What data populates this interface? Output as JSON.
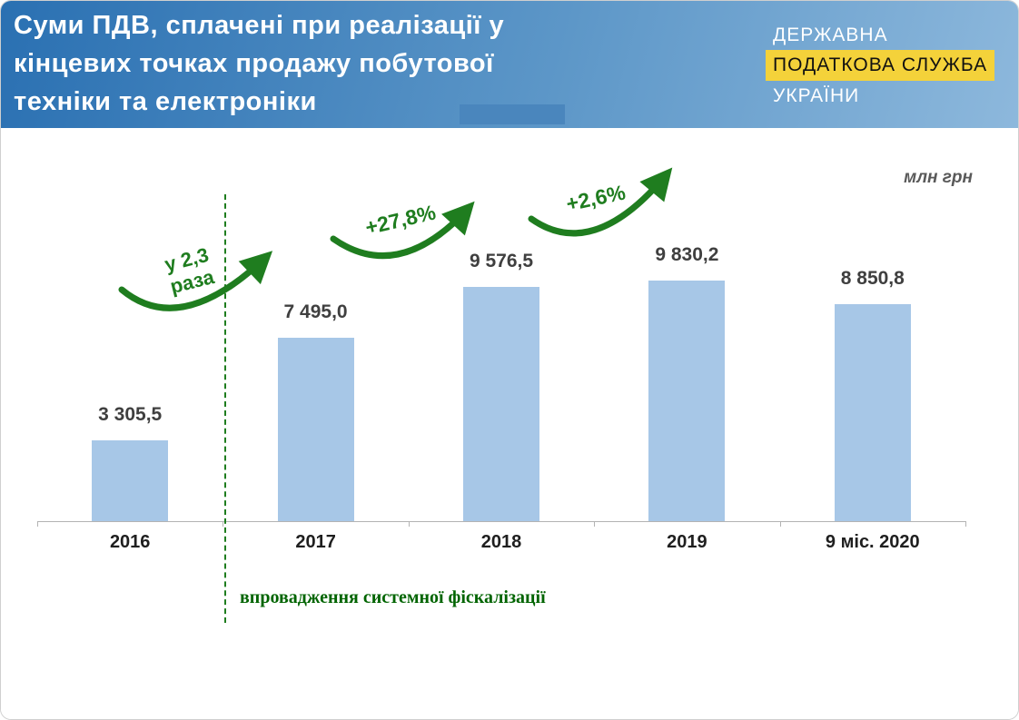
{
  "header": {
    "title_lines": [
      "Суми ПДВ, сплачені при реалізації у",
      "кінцевих точках продажу побутової",
      "техніки та електроніки"
    ],
    "logo": {
      "line1": "ДЕРЖАВНА",
      "line2": "ПОДАТКОВА СЛУЖБА",
      "line3": "УКРАЇНИ",
      "highlight_color": "#f4d23a"
    },
    "background_colors": [
      "#2a70b2",
      "#8db8dc"
    ]
  },
  "chart_data": {
    "type": "bar",
    "title": "Суми ПДВ, сплачені при реалізації у кінцевих точках продажу побутової техніки та електроніки",
    "unit_label": "млн грн",
    "categories": [
      "2016",
      "2017",
      "2018",
      "2019",
      "9 міс. 2020"
    ],
    "values": [
      3305.5,
      7495.0,
      9576.5,
      9830.2,
      8850.8
    ],
    "value_labels": [
      "3 305,5",
      "7 495,0",
      "9 576,5",
      "9 830,2",
      "8 850,8"
    ],
    "ylim": [
      0,
      10500
    ],
    "grid": false,
    "legend": "none",
    "bar_color": "#a7c7e7",
    "accent_green": "#1f7d1f",
    "caption_green": "#006400",
    "annotations": [
      {
        "label": "у 2,3 раза",
        "between": [
          "2016",
          "2017"
        ]
      },
      {
        "label": "+27,8%",
        "between": [
          "2017",
          "2018"
        ]
      },
      {
        "label": "+2,6%",
        "between": [
          "2018",
          "2019"
        ]
      }
    ],
    "reference_line_label": "впровадження системної фіскалізації",
    "reference_line_position": "between 2016 and 2017"
  }
}
